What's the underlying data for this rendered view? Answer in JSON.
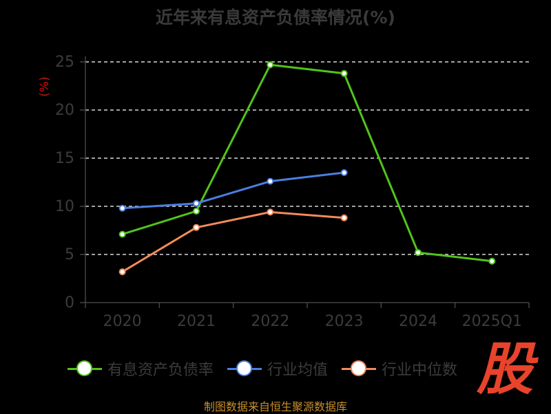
{
  "chart_data": {
    "type": "line",
    "title": "近年来有息资产负债率情况(%)",
    "ylabel": "(%)",
    "categories": [
      "2020",
      "2021",
      "2022",
      "2023",
      "2024",
      "2025Q1"
    ],
    "ylim": [
      0,
      25
    ],
    "yticks": [
      0,
      5,
      10,
      15,
      20,
      25
    ],
    "grid": true,
    "legend_position": "bottom",
    "series": [
      {
        "name": "有息资产负债率",
        "color": "#52c41a",
        "values": [
          7.1,
          9.5,
          24.7,
          23.8,
          5.2,
          4.3
        ]
      },
      {
        "name": "行业均值",
        "color": "#4a7fe0",
        "values": [
          9.8,
          10.3,
          12.6,
          13.5,
          null,
          null
        ]
      },
      {
        "name": "行业中位数",
        "color": "#f38b5a",
        "values": [
          3.2,
          7.8,
          9.4,
          8.8,
          null,
          null
        ]
      }
    ]
  },
  "source": "制图数据来自恒生聚源数据库",
  "logo_text": "股"
}
